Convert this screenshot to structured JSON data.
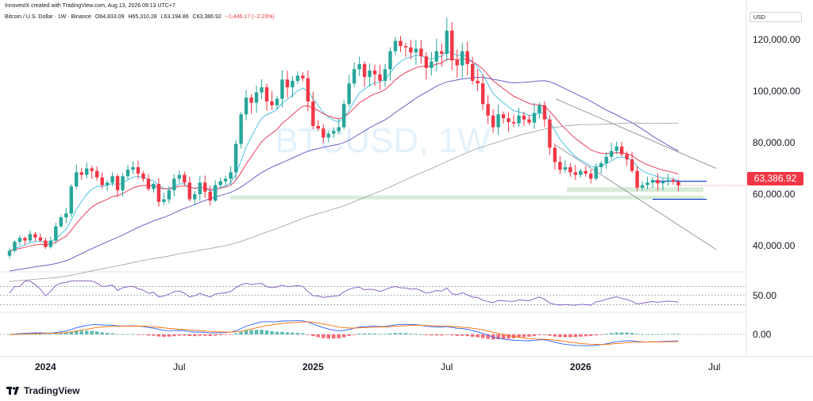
{
  "header": {
    "credit": "InnovestX created with TradingView.com, Aug 13, 2026 09:13 UTC+7",
    "symbol": "Bitcoin / U.S. Dollar · 1W · Binance",
    "open": "O64,833.09",
    "high": "H65,310.28",
    "low": "L63,194.86",
    "close": "C63,386.92",
    "change": "−1,446.17 (−2.23%)"
  },
  "currency_label": "USD",
  "watermark": "BTCUSD, 1W",
  "brand": "TradingView",
  "colors": {
    "up": "#26a69a",
    "down": "#f23645",
    "ema_fast": "#4dc3e0",
    "ema_slow": "#e8405c",
    "ma_purple": "#6c5fc7",
    "ma_grey": "#9e9e9e",
    "support": "#c8e6c9",
    "rsi_line": "#7e57c2"
  },
  "chart_data": {
    "type": "candlestick",
    "timeframe": "1W",
    "y_ticks": [
      "120,000.00",
      "100,000.00",
      "80,000.00",
      "40,000.00"
    ],
    "y_tick_values": [
      120000,
      100000,
      80000,
      40000
    ],
    "y_label_60k": "60,000.00",
    "ylim": [
      30000,
      128000
    ],
    "x_ticks": [
      "2024",
      "Jul",
      "2025",
      "Jul",
      "2026",
      "Jul"
    ],
    "x_tick_weeks": [
      7,
      33,
      59,
      85,
      111,
      137
    ],
    "last_price": "63,386.92",
    "last_price_value": 63386.92,
    "weekly_close": [
      38000,
      41500,
      43000,
      42000,
      44500,
      43200,
      42000,
      39500,
      42000,
      47500,
      51000,
      52500,
      63000,
      68500,
      67500,
      70000,
      69000,
      66500,
      63500,
      64500,
      67000,
      61500,
      67000,
      69500,
      70500,
      68000,
      66000,
      62000,
      64000,
      57000,
      58000,
      61500,
      66000,
      67500,
      64500,
      58000,
      60000,
      64500,
      61000,
      57500,
      63500,
      65000,
      66000,
      68500,
      79500,
      91000,
      97500,
      95500,
      99500,
      101500,
      96000,
      94500,
      97000,
      104500,
      101500,
      104000,
      106000,
      105000,
      96000,
      86500,
      85500,
      82000,
      83500,
      84500,
      86000,
      95000,
      103000,
      108500,
      110500,
      105500,
      108000,
      106500,
      104000,
      108500,
      115500,
      119500,
      117500,
      117000,
      115000,
      116500,
      113500,
      109000,
      111500,
      115500,
      114500,
      123500,
      112000,
      110000,
      115500,
      110500,
      104000,
      103000,
      95000,
      90500,
      86000,
      91000,
      89500,
      88000,
      87500,
      90500,
      89000,
      87800,
      91500,
      94500,
      89000,
      78000,
      72500,
      69500,
      70500,
      68500,
      67500,
      69000,
      68000,
      66000,
      70500,
      72000,
      74500,
      76800,
      78500,
      75500,
      73500,
      69000,
      62500,
      63500,
      64500,
      65500,
      64200,
      64800,
      65500,
      64833,
      63387
    ],
    "rsi_levels": [
      70,
      50,
      30
    ],
    "rsi_label": "50.00",
    "macd_label": "0.00",
    "support_zone": [
      60000,
      62500
    ],
    "range_box": [
      58000,
      65000
    ]
  }
}
